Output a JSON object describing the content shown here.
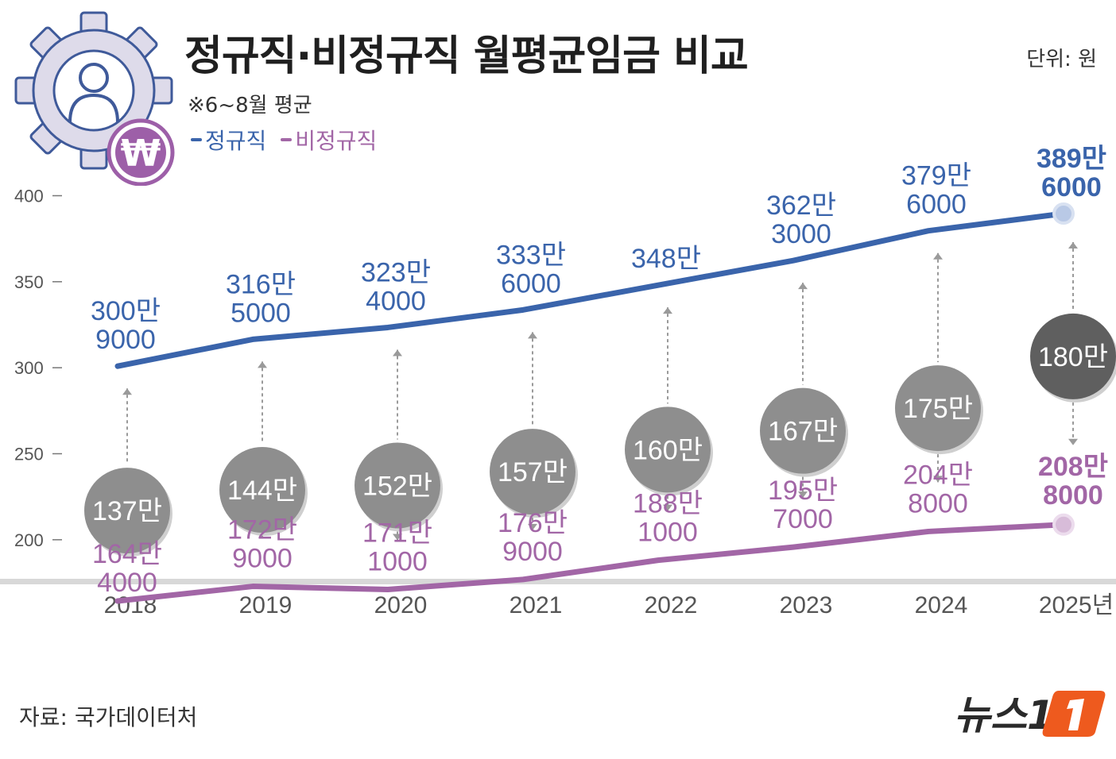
{
  "header": {
    "title": "정규직·비정규직 월평균임금 비교",
    "note": "※6~8월 평균",
    "unit": "단위: 원"
  },
  "legend": [
    {
      "label": "정규직",
      "color": "#3a64ab"
    },
    {
      "label": "비정규직",
      "color": "#a266a6"
    }
  ],
  "footer": {
    "source": "자료: 국가데이터처",
    "brand": "뉴스1"
  },
  "icon": {
    "name": "worker-gear-icon",
    "symbol": "₩"
  },
  "colors": {
    "regular": "#3a64ab",
    "nonregular": "#a266a6",
    "gap_bubble": "#8e8e8e",
    "gap_bubble_last": "#5f5f5f",
    "axis_text": "#555555",
    "brand_orange": "#ee5a1e"
  },
  "chart_data": {
    "type": "line",
    "title": "정규직·비정규직 월평균임금 비교",
    "xlabel": "",
    "ylabel": "",
    "unit": "단위: 원",
    "categories": [
      "2018",
      "2019",
      "2020",
      "2021",
      "2022",
      "2023",
      "2024",
      "2025년"
    ],
    "ylim": [
      175,
      415
    ],
    "yticks": [
      "200",
      "250",
      "300",
      "350",
      "400"
    ],
    "grid": false,
    "legend_position": "top-left",
    "series": [
      {
        "name": "정규직",
        "values": [
          300.9,
          316.5,
          323.4,
          333.6,
          348.0,
          362.3,
          379.6,
          389.6
        ],
        "labels": [
          [
            "300만",
            "9000"
          ],
          [
            "316만",
            "5000"
          ],
          [
            "323만",
            "4000"
          ],
          [
            "333만",
            "6000"
          ],
          [
            "348만"
          ],
          [
            "362만",
            "3000"
          ],
          [
            "379만",
            "6000"
          ],
          [
            "389만",
            "6000"
          ]
        ]
      },
      {
        "name": "비정규직",
        "values": [
          164.4,
          172.9,
          171.1,
          176.9,
          188.1,
          195.7,
          204.8,
          208.8
        ],
        "labels": [
          [
            "164만",
            "4000"
          ],
          [
            "172만",
            "9000"
          ],
          [
            "171만",
            "1000"
          ],
          [
            "176만",
            "9000"
          ],
          [
            "188만",
            "1000"
          ],
          [
            "195만",
            "7000"
          ],
          [
            "204만",
            "8000"
          ],
          [
            "208만",
            "8000"
          ]
        ]
      }
    ],
    "gap": {
      "values": [
        137,
        144,
        152,
        157,
        160,
        167,
        175,
        180
      ],
      "labels": [
        "137만",
        "144만",
        "152만",
        "157만",
        "160만",
        "167만",
        "175만",
        "180만"
      ]
    }
  }
}
